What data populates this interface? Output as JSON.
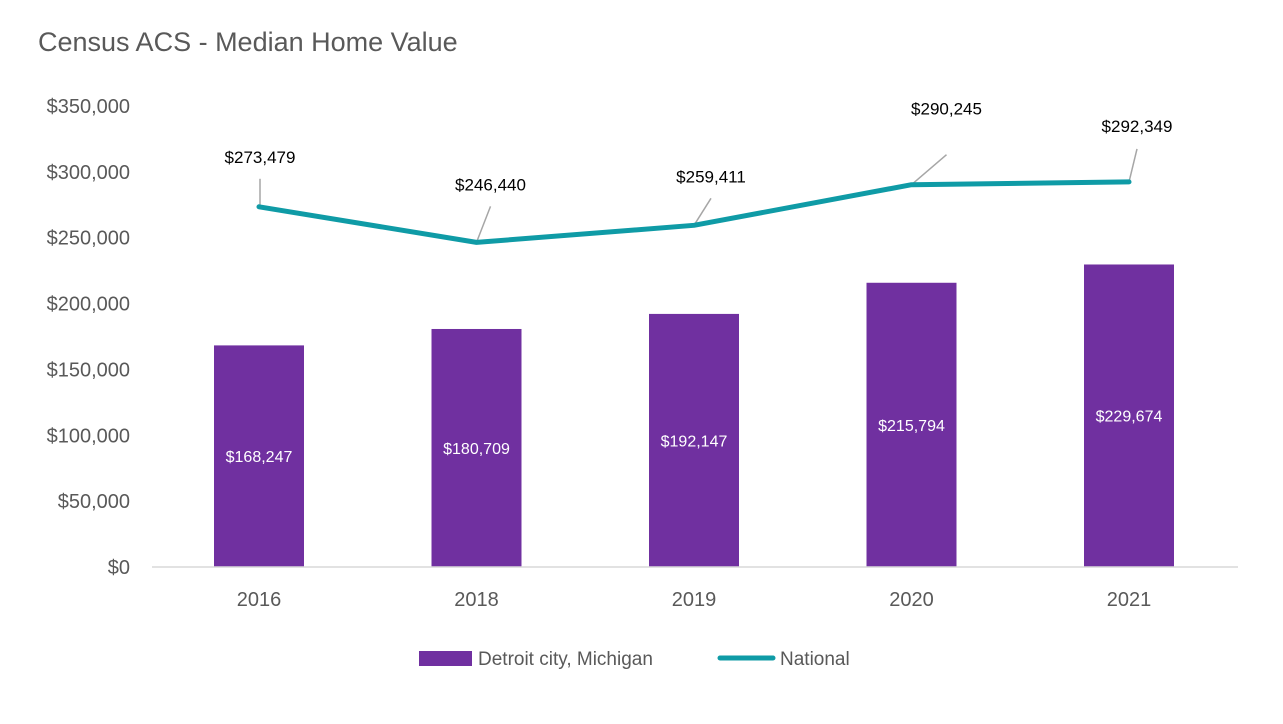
{
  "chart_data": {
    "type": "bar+line",
    "title": "Census ACS - Median Home Value",
    "categories": [
      "2016",
      "2018",
      "2019",
      "2020",
      "2021"
    ],
    "ylim": [
      0,
      350000
    ],
    "y_ticks": [
      "$0",
      "$50,000",
      "$100,000",
      "$150,000",
      "$200,000",
      "$250,000",
      "$300,000",
      "$350,000"
    ],
    "grid": false,
    "legend_placement": "bottom",
    "series": [
      {
        "name": "Detroit city, Michigan",
        "type": "bar",
        "color": "#7030a0",
        "values": [
          168247,
          180709,
          192147,
          215794,
          229674
        ],
        "labels": [
          "$168,247",
          "$180,709",
          "$192,147",
          "$215,794",
          "$229,674"
        ]
      },
      {
        "name": "National",
        "type": "line",
        "color": "#0f9ba6",
        "values": [
          273479,
          246440,
          259411,
          290245,
          292349
        ],
        "labels": [
          "$273,479",
          "$246,440",
          "$259,411",
          "$290,245",
          "$292,349"
        ]
      }
    ]
  }
}
